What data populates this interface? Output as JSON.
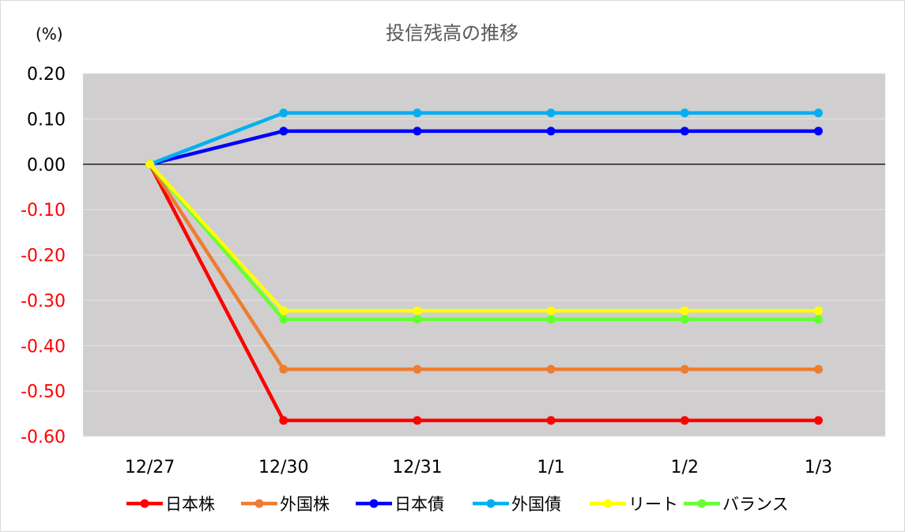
{
  "chart_data": {
    "type": "line",
    "title": "投信残高の推移",
    "unit_label": "(%)",
    "categories": [
      "12/27",
      "12/30",
      "12/31",
      "1/1",
      "1/2",
      "1/3"
    ],
    "ylim": [
      -0.6,
      0.2
    ],
    "yticks": [
      0.2,
      0.1,
      0.0,
      -0.1,
      -0.2,
      -0.3,
      -0.4,
      -0.5,
      -0.6
    ],
    "ytick_labels": [
      "0.20",
      "0.10",
      "0.00",
      "-0.10",
      "-0.20",
      "-0.30",
      "-0.40",
      "-0.50",
      "-0.60"
    ],
    "grid": true,
    "legend_position": "bottom",
    "plot_background": "#d0cece",
    "negative_tick_color": "#ff0000",
    "positive_tick_color": "#000000",
    "series": [
      {
        "name": "日本株",
        "color": "#ff0000",
        "values": [
          0.0,
          -0.565,
          -0.565,
          -0.565,
          -0.565,
          -0.565
        ]
      },
      {
        "name": "外国株",
        "color": "#ed7d31",
        "values": [
          0.0,
          -0.452,
          -0.452,
          -0.452,
          -0.452,
          -0.452
        ]
      },
      {
        "name": "日本債",
        "color": "#0000ff",
        "values": [
          0.0,
          0.073,
          0.073,
          0.073,
          0.073,
          0.073
        ]
      },
      {
        "name": "外国債",
        "color": "#00b0f0",
        "values": [
          0.0,
          0.113,
          0.113,
          0.113,
          0.113,
          0.113
        ]
      },
      {
        "name": "リート",
        "color": "#ffff00",
        "values": [
          0.0,
          -0.323,
          -0.323,
          -0.323,
          -0.323,
          -0.323
        ]
      },
      {
        "name": "バランス",
        "color": "#66ff33",
        "values": [
          0.0,
          -0.342,
          -0.342,
          -0.342,
          -0.342,
          -0.342
        ]
      }
    ]
  }
}
